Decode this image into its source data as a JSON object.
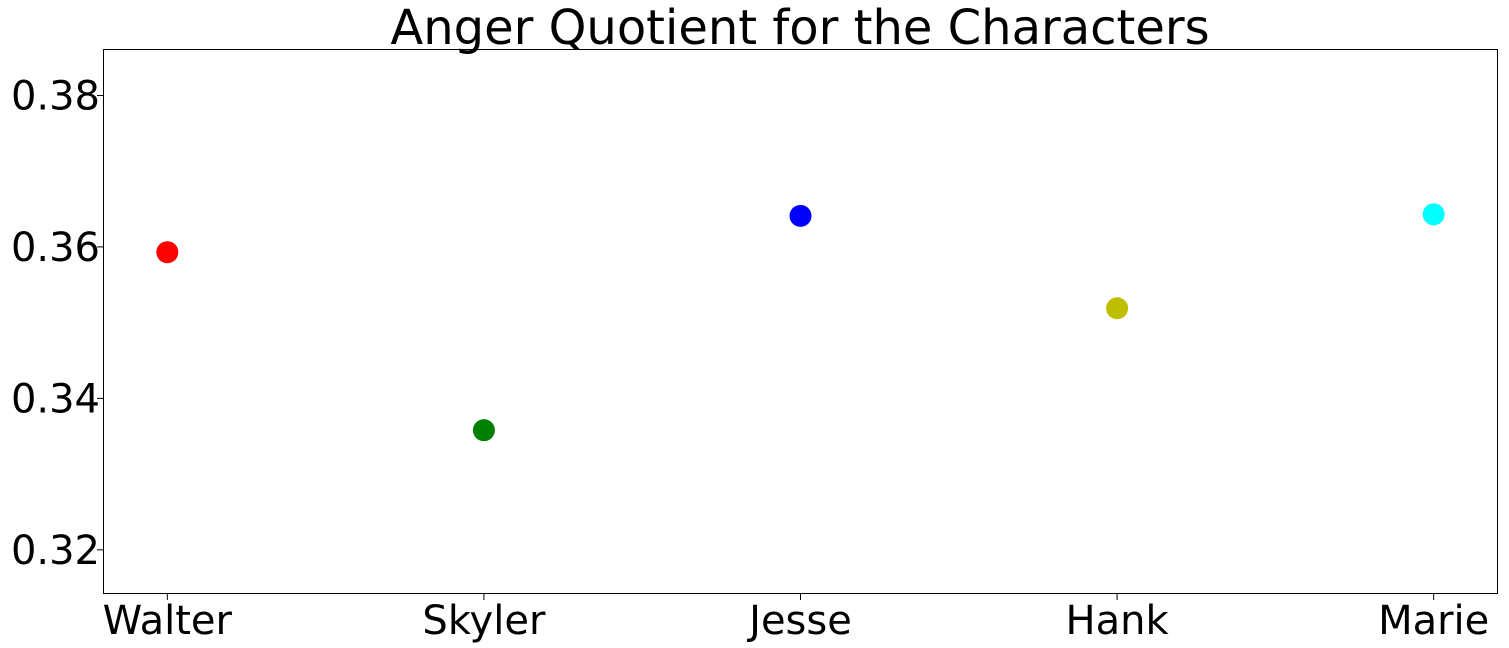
{
  "chart_data": {
    "type": "scatter",
    "title": "Anger Quotient for the Characters",
    "xlabel": "",
    "ylabel": "",
    "categories": [
      "Walter",
      "Skyler",
      "Jesse",
      "Hank",
      "Marie"
    ],
    "values": [
      0.3593,
      0.3358,
      0.3641,
      0.3519,
      0.3643
    ],
    "point_colors": [
      "#ff0000",
      "#008000",
      "#0000ff",
      "#bfbf00",
      "#00ffff"
    ],
    "ylim": [
      0.3143,
      0.386
    ],
    "yticks": [
      0.32,
      0.34,
      0.36,
      0.38
    ],
    "ytick_labels": [
      "0.32",
      "0.34",
      "0.36",
      "0.38"
    ],
    "grid": false,
    "legend": "none"
  }
}
